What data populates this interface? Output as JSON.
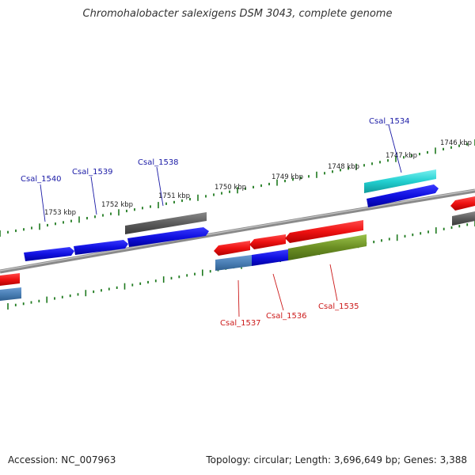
{
  "title": "Chromohalobacter salexigens DSM 3043, complete genome",
  "footer": {
    "accession": "Accession: NC_007963",
    "summary": "Topology: circular; Length: 3,696,649 bp; Genes: 3,388"
  },
  "colors": {
    "backbone": "#7a7a7a",
    "tick": "#1f7a1f",
    "label_forward": "#1a1aa6",
    "label_reverse": "#cc1a1a"
  },
  "kbp_labels": [
    "1753 kbp",
    "1752 kbp",
    "1751 kbp",
    "1750 kbp",
    "1749 kbp",
    "1748 kbp",
    "1747 kbp",
    "1746 kbp"
  ],
  "genes_forward": [
    {
      "label": "Csal_1540"
    },
    {
      "label": "Csal_1539"
    },
    {
      "label": "Csal_1538"
    },
    {
      "label": "Csal_1534"
    }
  ],
  "genes_reverse": [
    {
      "label": "Csal_1537"
    },
    {
      "label": "Csal_1536"
    },
    {
      "label": "Csal_1535"
    }
  ]
}
